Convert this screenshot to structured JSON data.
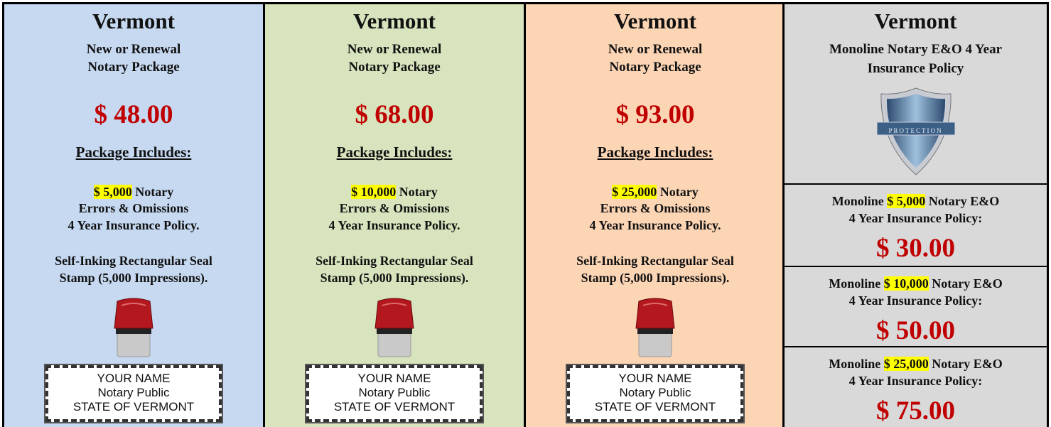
{
  "packages": [
    {
      "state": "Vermont",
      "subtitle": [
        "New or Renewal",
        "Notary Package"
      ],
      "price": "$ 48.00",
      "includes_label": "Package Includes:",
      "coverage_amount": "$ 5,000",
      "coverage_text": [
        "Notary",
        "Errors & Omissions",
        "4 Year Insurance Policy."
      ],
      "seal_text": [
        "Self-Inking Rectangular Seal",
        "Stamp (5,000 Impressions)."
      ],
      "stamp_sample": [
        "YOUR NAME",
        "Notary Public",
        "STATE OF VERMONT"
      ]
    },
    {
      "state": "Vermont",
      "subtitle": [
        "New or Renewal",
        "Notary Package"
      ],
      "price": "$ 68.00",
      "includes_label": "Package Includes:",
      "coverage_amount": "$ 10,000",
      "coverage_text": [
        "Notary",
        "Errors & Omissions",
        "4 Year Insurance Policy."
      ],
      "seal_text": [
        "Self-Inking Rectangular Seal",
        "Stamp (5,000 Impressions)."
      ],
      "stamp_sample": [
        "YOUR NAME",
        "Notary Public",
        "STATE OF VERMONT"
      ]
    },
    {
      "state": "Vermont",
      "subtitle": [
        "New or Renewal",
        "Notary Package"
      ],
      "price": "$ 93.00",
      "includes_label": "Package Includes:",
      "coverage_amount": "$ 25,000",
      "coverage_text": [
        "Notary",
        "Errors & Omissions",
        "4 Year Insurance Policy."
      ],
      "seal_text": [
        "Self-Inking Rectangular Seal",
        "Stamp (5,000 Impressions)."
      ],
      "stamp_sample": [
        "YOUR NAME",
        "Notary Public",
        "STATE OF VERMONT"
      ]
    }
  ],
  "policy": {
    "state": "Vermont",
    "subtitle": [
      "Monoline Notary E&O 4 Year",
      "Insurance Policy"
    ],
    "shield_label": "PROTECTION",
    "options": [
      {
        "prefix": "Monoline",
        "amount": "$ 5,000",
        "suffix": "Notary E&O",
        "line2": "4 Year Insurance Policy:",
        "price": "$ 30.00"
      },
      {
        "prefix": "Monoline",
        "amount": "$ 10,000",
        "suffix": "Notary E&O",
        "line2": "4 Year Insurance Policy:",
        "price": "$ 50.00"
      },
      {
        "prefix": "Monoline",
        "amount": "$ 25,000",
        "suffix": "Notary E&O",
        "line2": "4 Year Insurance Policy:",
        "price": "$ 75.00"
      }
    ]
  }
}
